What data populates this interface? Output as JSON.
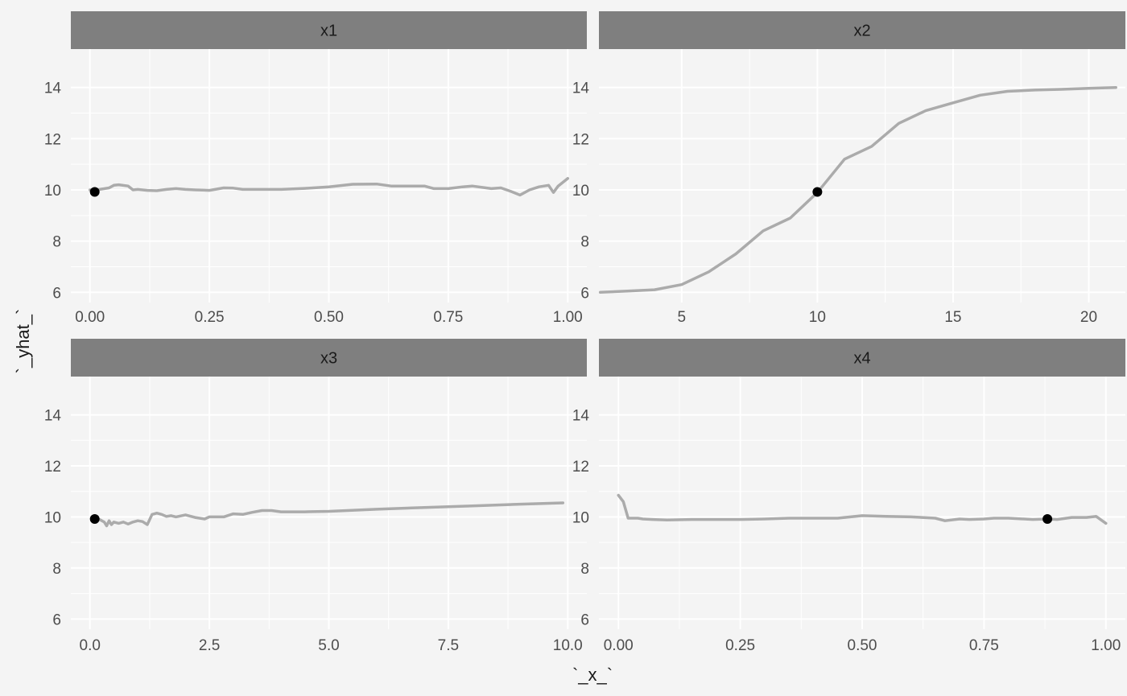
{
  "chart_data": {
    "type": "line",
    "xlabel": "`_x_`",
    "ylabel": "`_yhat_`",
    "ylim": [
      5.6,
      15.5
    ],
    "yticks": [
      6,
      8,
      10,
      12,
      14
    ],
    "grid": true,
    "colors": {
      "background": "#f4f4f4",
      "strip": "#7f7f7f",
      "grid": "#ffffff",
      "line": "#ababab",
      "point": "#000000"
    },
    "panels": [
      {
        "name": "x1",
        "xlim": [
          -0.04,
          1.04
        ],
        "xticks": [
          0,
          0.25,
          0.5,
          0.75,
          1
        ],
        "xtick_labels": [
          "0.00",
          "0.25",
          "0.50",
          "0.75",
          "1.00"
        ],
        "x": [
          0.0,
          0.02,
          0.04,
          0.05,
          0.06,
          0.08,
          0.09,
          0.1,
          0.12,
          0.14,
          0.16,
          0.18,
          0.2,
          0.22,
          0.25,
          0.28,
          0.3,
          0.32,
          0.35,
          0.4,
          0.45,
          0.5,
          0.55,
          0.6,
          0.63,
          0.65,
          0.7,
          0.72,
          0.75,
          0.78,
          0.8,
          0.84,
          0.86,
          0.88,
          0.9,
          0.92,
          0.94,
          0.96,
          0.97,
          0.98,
          1.0
        ],
        "y": [
          10.0,
          10.02,
          10.08,
          10.18,
          10.2,
          10.15,
          10.0,
          10.02,
          9.98,
          9.97,
          10.02,
          10.05,
          10.02,
          10.0,
          9.98,
          10.08,
          10.07,
          10.02,
          10.02,
          10.02,
          10.06,
          10.12,
          10.22,
          10.23,
          10.15,
          10.15,
          10.15,
          10.05,
          10.05,
          10.12,
          10.15,
          10.05,
          10.08,
          9.95,
          9.8,
          10.0,
          10.12,
          10.18,
          9.9,
          10.15,
          10.45
        ],
        "point": {
          "x": 0.01,
          "y": 9.92
        }
      },
      {
        "name": "x2",
        "xlim": [
          1.95,
          21.35
        ],
        "xticks": [
          5,
          10,
          15,
          20
        ],
        "xtick_labels": [
          "5",
          "10",
          "15",
          "20"
        ],
        "x": [
          2,
          3,
          4,
          5,
          6,
          7,
          8,
          9,
          10,
          11,
          12,
          13,
          14,
          15,
          16,
          17,
          18,
          19,
          20,
          21
        ],
        "y": [
          6.0,
          6.05,
          6.1,
          6.3,
          6.8,
          7.5,
          8.4,
          8.9,
          9.9,
          11.2,
          11.7,
          12.6,
          13.1,
          13.4,
          13.7,
          13.85,
          13.9,
          13.93,
          13.97,
          14.0
        ],
        "point": {
          "x": 10,
          "y": 9.92
        }
      },
      {
        "name": "x3",
        "xlim": [
          -0.4,
          10.4
        ],
        "xticks": [
          0,
          2.5,
          5,
          7.5,
          10
        ],
        "xtick_labels": [
          "0.0",
          "2.5",
          "5.0",
          "7.5",
          "10.0"
        ],
        "x": [
          0.1,
          0.2,
          0.3,
          0.35,
          0.4,
          0.45,
          0.5,
          0.6,
          0.7,
          0.8,
          0.9,
          1.0,
          1.1,
          1.2,
          1.3,
          1.35,
          1.4,
          1.5,
          1.6,
          1.7,
          1.8,
          2.0,
          2.2,
          2.4,
          2.5,
          2.6,
          2.8,
          3.0,
          3.2,
          3.4,
          3.6,
          3.8,
          4.0,
          4.5,
          5.0,
          6.0,
          7.0,
          8.0,
          9.0,
          9.9
        ],
        "y": [
          9.95,
          9.9,
          9.8,
          9.65,
          9.85,
          9.7,
          9.8,
          9.75,
          9.8,
          9.72,
          9.8,
          9.85,
          9.82,
          9.7,
          10.1,
          10.12,
          10.15,
          10.1,
          10.02,
          10.05,
          10.0,
          10.08,
          9.98,
          9.92,
          10.0,
          10.0,
          10.0,
          10.12,
          10.1,
          10.18,
          10.25,
          10.25,
          10.2,
          10.2,
          10.22,
          10.3,
          10.37,
          10.43,
          10.5,
          10.55
        ],
        "point": {
          "x": 0.1,
          "y": 9.92
        }
      },
      {
        "name": "x4",
        "xlim": [
          -0.04,
          1.04
        ],
        "xticks": [
          0,
          0.25,
          0.5,
          0.75,
          1
        ],
        "xtick_labels": [
          "0.00",
          "0.25",
          "0.50",
          "0.75",
          "1.00"
        ],
        "x": [
          0.0,
          0.01,
          0.02,
          0.04,
          0.05,
          0.07,
          0.1,
          0.15,
          0.2,
          0.25,
          0.3,
          0.35,
          0.4,
          0.45,
          0.5,
          0.55,
          0.6,
          0.65,
          0.67,
          0.7,
          0.72,
          0.75,
          0.77,
          0.8,
          0.85,
          0.88,
          0.9,
          0.93,
          0.96,
          0.98,
          1.0
        ],
        "y": [
          10.85,
          10.6,
          9.95,
          9.95,
          9.92,
          9.9,
          9.88,
          9.9,
          9.9,
          9.9,
          9.92,
          9.95,
          9.95,
          9.95,
          10.05,
          10.02,
          10.0,
          9.95,
          9.85,
          9.92,
          9.9,
          9.92,
          9.95,
          9.95,
          9.9,
          9.92,
          9.9,
          9.98,
          9.98,
          10.02,
          9.75
        ],
        "point": {
          "x": 0.88,
          "y": 9.92
        }
      }
    ]
  }
}
